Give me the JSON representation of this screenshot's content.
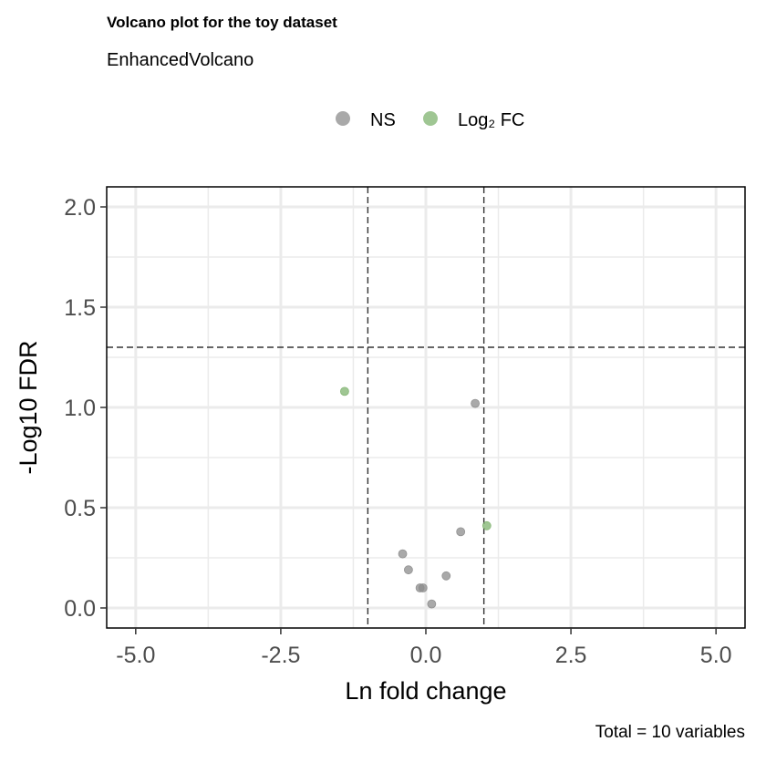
{
  "title": "Volcano plot for the toy dataset",
  "subtitle": "EnhancedVolcano",
  "caption": "Total = 10 variables",
  "chart_data": {
    "type": "scatter",
    "xlabel": "Ln fold change",
    "ylabel": "-Log10 FDR",
    "xlim": [
      -5.5,
      5.5
    ],
    "ylim": [
      -0.1,
      2.1
    ],
    "xticks": [
      -5.0,
      -2.5,
      0.0,
      2.5,
      5.0
    ],
    "xtick_labels": [
      "-5.0",
      "-2.5",
      "0.0",
      "2.5",
      "5.0"
    ],
    "yticks": [
      0.0,
      0.5,
      1.0,
      1.5,
      2.0
    ],
    "ytick_labels": [
      "0.0",
      "0.5",
      "1.0",
      "1.5",
      "2.0"
    ],
    "grid": true,
    "legend_position": "top",
    "thresholds": {
      "fc_cutoff": [
        -1.0,
        1.0
      ],
      "fdr_cutoff": 1.3
    },
    "colors": {
      "NS": "#8c8c8c",
      "FC": "#7fb36f",
      "grid": "#ebebeb",
      "cutoff_line": "#333333"
    },
    "series": [
      {
        "name": "NS",
        "points": [
          {
            "x": 0.85,
            "y": 1.02
          },
          {
            "x": 0.6,
            "y": 0.38
          },
          {
            "x": -0.4,
            "y": 0.27
          },
          {
            "x": -0.3,
            "y": 0.19
          },
          {
            "x": 0.35,
            "y": 0.16
          },
          {
            "x": -0.1,
            "y": 0.1
          },
          {
            "x": -0.05,
            "y": 0.1
          },
          {
            "x": 0.1,
            "y": 0.02
          }
        ]
      },
      {
        "name": "Log₂ FC",
        "points": [
          {
            "x": -1.4,
            "y": 1.08
          },
          {
            "x": 1.05,
            "y": 0.41
          }
        ]
      }
    ]
  }
}
